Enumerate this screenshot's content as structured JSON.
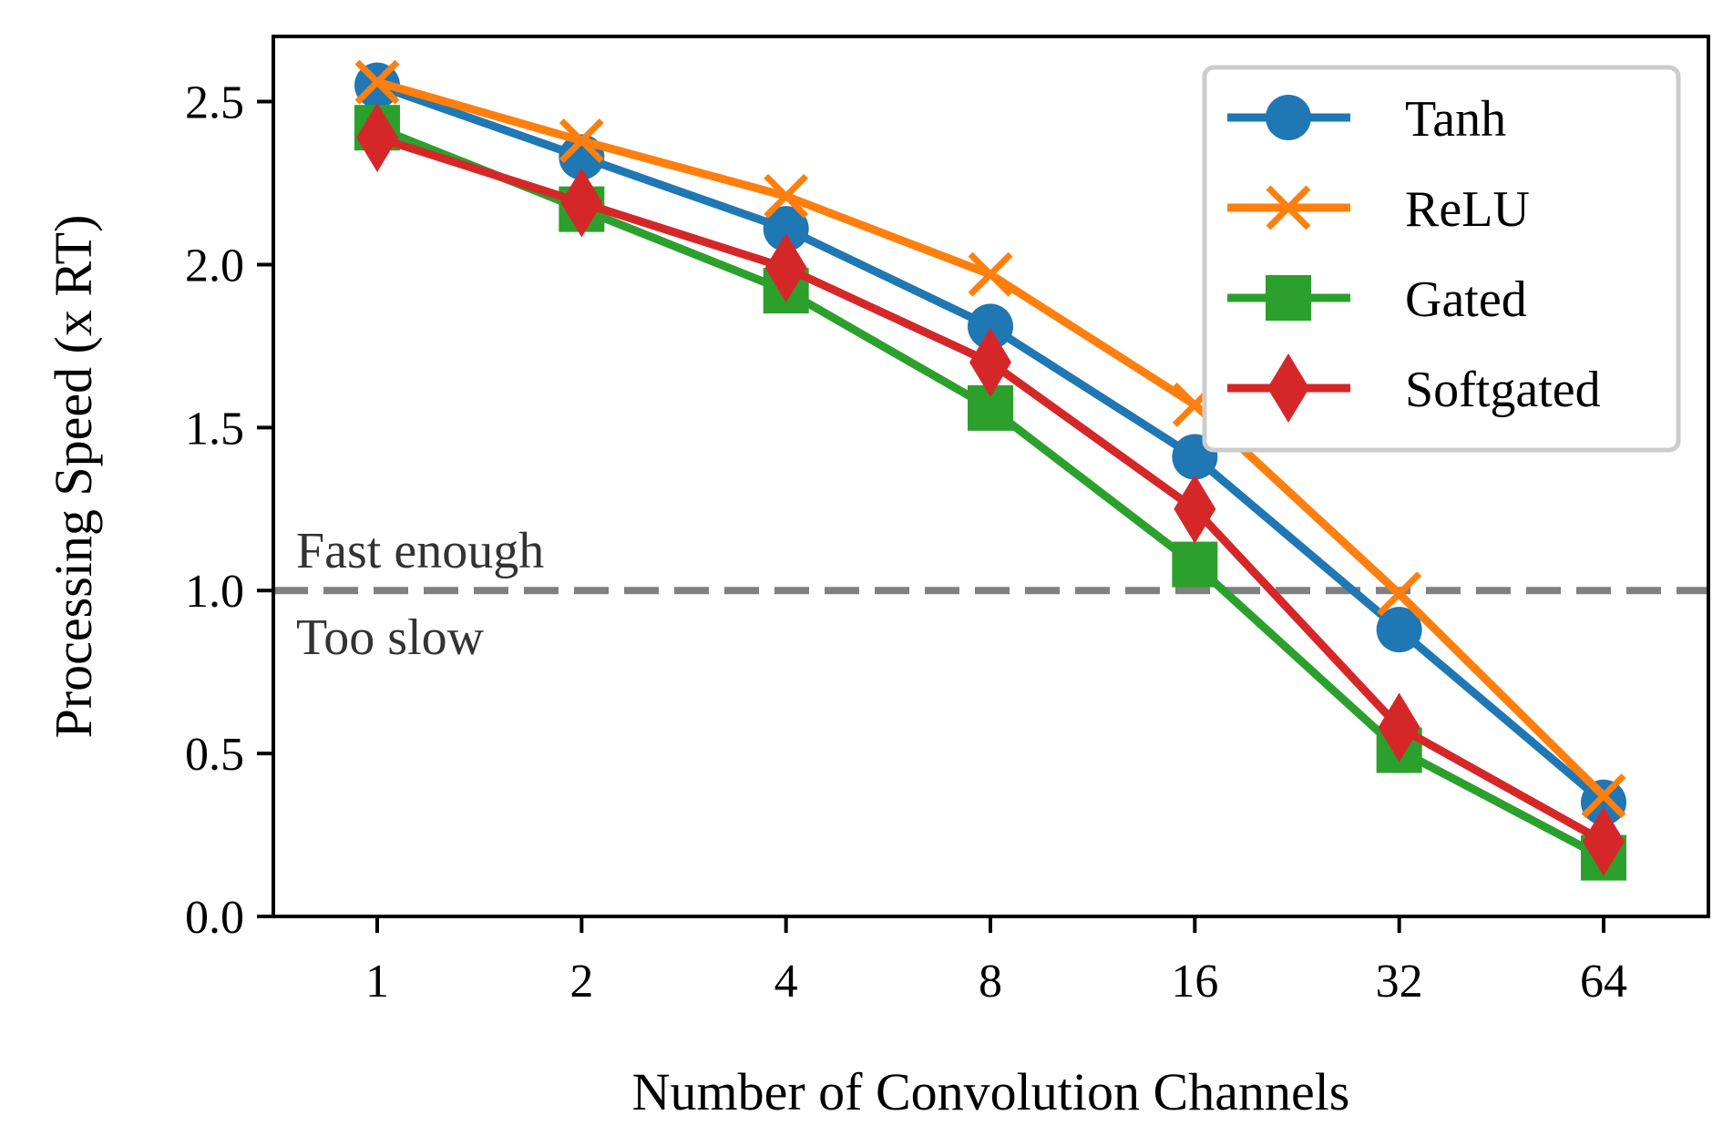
{
  "chart_data": {
    "type": "line",
    "title": "",
    "xlabel": "Number of Convolution Channels",
    "ylabel": "Processing Speed (x RT)",
    "categories": [
      "1",
      "2",
      "4",
      "8",
      "16",
      "32",
      "64"
    ],
    "yticks": [
      "0.0",
      "0.5",
      "1.0",
      "1.5",
      "2.0",
      "2.5"
    ],
    "ylim": [
      0,
      2.7
    ],
    "grid": false,
    "legend_position": "top-right",
    "series": [
      {
        "name": "Tanh",
        "color": "#1f77b4",
        "marker": "circle",
        "values": [
          2.55,
          2.33,
          2.11,
          1.81,
          1.41,
          0.88,
          0.35
        ]
      },
      {
        "name": "ReLU",
        "color": "#ff7f0e",
        "marker": "x",
        "values": [
          2.56,
          2.38,
          2.21,
          1.97,
          1.57,
          0.99,
          0.37
        ]
      },
      {
        "name": "Gated",
        "color": "#2ca02c",
        "marker": "square",
        "values": [
          2.42,
          2.17,
          1.92,
          1.56,
          1.08,
          0.51,
          0.18
        ]
      },
      {
        "name": "Softgated",
        "color": "#d62728",
        "marker": "diamond",
        "values": [
          2.39,
          2.19,
          1.99,
          1.7,
          1.25,
          0.58,
          0.23
        ]
      }
    ],
    "reference_line": {
      "value": 1.0,
      "color": "#808080",
      "style": "dashed"
    },
    "annotations": {
      "above": "Fast enough",
      "below": "Too slow"
    }
  }
}
